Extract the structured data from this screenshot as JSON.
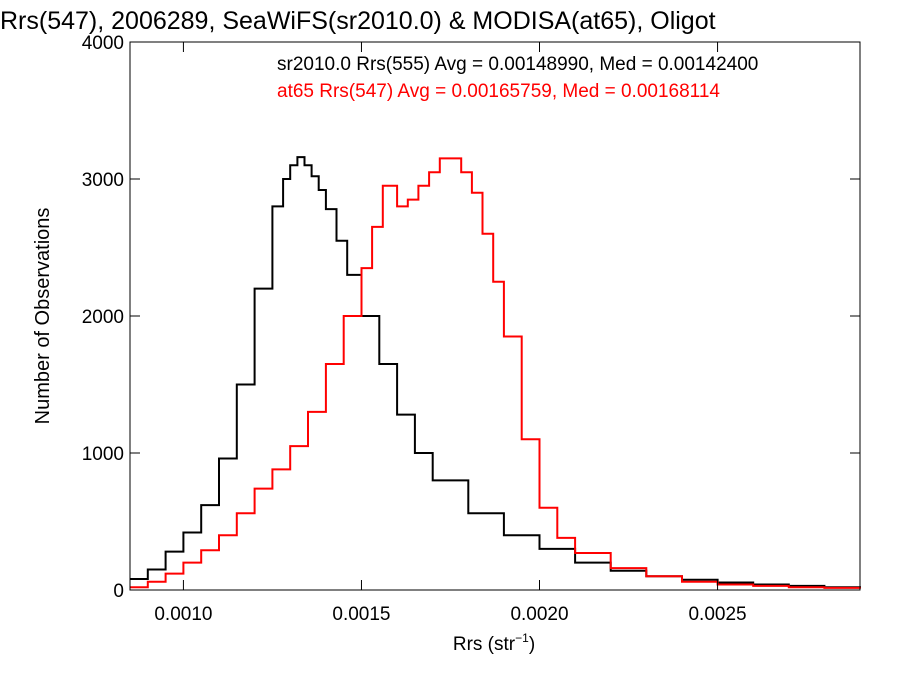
{
  "chart_data": {
    "type": "line",
    "title": "Rrs(547), 2006289, SeaWiFS(sr2010.0) & MODISA(at65), Oligot",
    "xlabel": "Rrs (str",
    "xlabel_sup": "−1",
    "xlabel_close": ")",
    "ylabel": "Number of Observations",
    "xlim": [
      0.00085,
      0.0029
    ],
    "ylim": [
      0,
      4000
    ],
    "x_ticks": [
      {
        "value": 0.001,
        "label": "0.0010"
      },
      {
        "value": 0.0015,
        "label": "0.0015"
      },
      {
        "value": 0.002,
        "label": "0.0020"
      },
      {
        "value": 0.0025,
        "label": "0.0025"
      }
    ],
    "y_ticks": [
      {
        "value": 0,
        "label": "0"
      },
      {
        "value": 1000,
        "label": "1000"
      },
      {
        "value": 2000,
        "label": "2000"
      },
      {
        "value": 3000,
        "label": "3000"
      },
      {
        "value": 4000,
        "label": "4000"
      }
    ],
    "grid": false,
    "legend_position": "top-right",
    "annotations": [
      {
        "text": "sr2010.0 Rrs(555) Avg = 0.00148990, Med = 0.00142400",
        "color": "#000000"
      },
      {
        "text": "at65 Rrs(547) Avg = 0.00165759, Med = 0.00168114",
        "color": "#ff0000"
      }
    ],
    "series": [
      {
        "color": "#000000",
        "x": [
          0.00085,
          0.0009,
          0.00095,
          0.001,
          0.00105,
          0.0011,
          0.00115,
          0.0012,
          0.00125,
          0.00128,
          0.0013,
          0.00132,
          0.00134,
          0.00136,
          0.00138,
          0.0014,
          0.00143,
          0.00146,
          0.0015,
          0.00155,
          0.0016,
          0.00165,
          0.0017,
          0.0018,
          0.0019,
          0.002,
          0.0021,
          0.0022,
          0.0023,
          0.0024,
          0.0025,
          0.0026,
          0.0027,
          0.0028,
          0.0029
        ],
        "y": [
          80,
          150,
          280,
          420,
          620,
          960,
          1500,
          2200,
          2800,
          3000,
          3100,
          3160,
          3100,
          3020,
          2920,
          2780,
          2550,
          2300,
          2000,
          1650,
          1280,
          1000,
          800,
          560,
          400,
          300,
          200,
          140,
          100,
          75,
          55,
          40,
          30,
          20,
          15
        ]
      },
      {
        "color": "#ff0000",
        "x": [
          0.00085,
          0.0009,
          0.00095,
          0.001,
          0.00105,
          0.0011,
          0.00115,
          0.0012,
          0.00125,
          0.0013,
          0.00135,
          0.0014,
          0.00145,
          0.0015,
          0.00153,
          0.00156,
          0.0016,
          0.00163,
          0.00166,
          0.00169,
          0.00172,
          0.00175,
          0.00178,
          0.00181,
          0.00184,
          0.00187,
          0.0019,
          0.00195,
          0.002,
          0.00205,
          0.0021,
          0.0022,
          0.0023,
          0.0024,
          0.0025,
          0.0026,
          0.0027,
          0.0028,
          0.0029
        ],
        "y": [
          20,
          60,
          120,
          200,
          290,
          400,
          560,
          740,
          880,
          1050,
          1300,
          1650,
          2000,
          2350,
          2650,
          2950,
          2800,
          2850,
          2950,
          3050,
          3150,
          3150,
          3050,
          2900,
          2600,
          2250,
          1850,
          1100,
          600,
          380,
          270,
          160,
          100,
          60,
          40,
          30,
          20,
          15,
          10
        ]
      }
    ]
  }
}
